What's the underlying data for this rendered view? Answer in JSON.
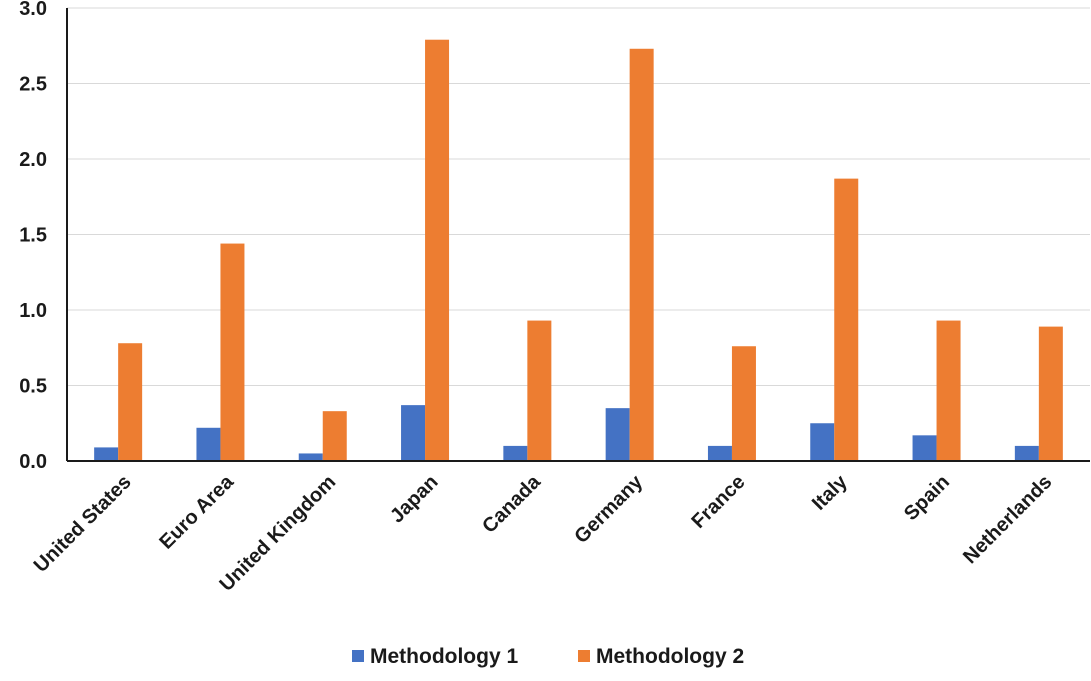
{
  "chart_data": {
    "type": "bar",
    "title": "",
    "xlabel": "",
    "ylabel": "",
    "categories": [
      "United States",
      "Euro Area",
      "United Kingdom",
      "Japan",
      "Canada",
      "Germany",
      "France",
      "Italy",
      "Spain",
      "Netherlands"
    ],
    "series": [
      {
        "name": "Methodology 1",
        "color": "#4472c4",
        "values": [
          0.09,
          0.22,
          0.05,
          0.37,
          0.1,
          0.35,
          0.1,
          0.25,
          0.17,
          0.1
        ]
      },
      {
        "name": "Methodology 2",
        "color": "#ed7d31",
        "values": [
          0.78,
          1.44,
          0.33,
          2.79,
          0.93,
          2.73,
          0.76,
          1.87,
          0.93,
          0.89
        ]
      }
    ],
    "ylim": [
      0,
      3.0
    ],
    "yticks": [
      "0.0",
      "0.5",
      "1.0",
      "1.5",
      "2.0",
      "2.5",
      "3.0"
    ],
    "grid": true,
    "legend_position": "bottom"
  }
}
